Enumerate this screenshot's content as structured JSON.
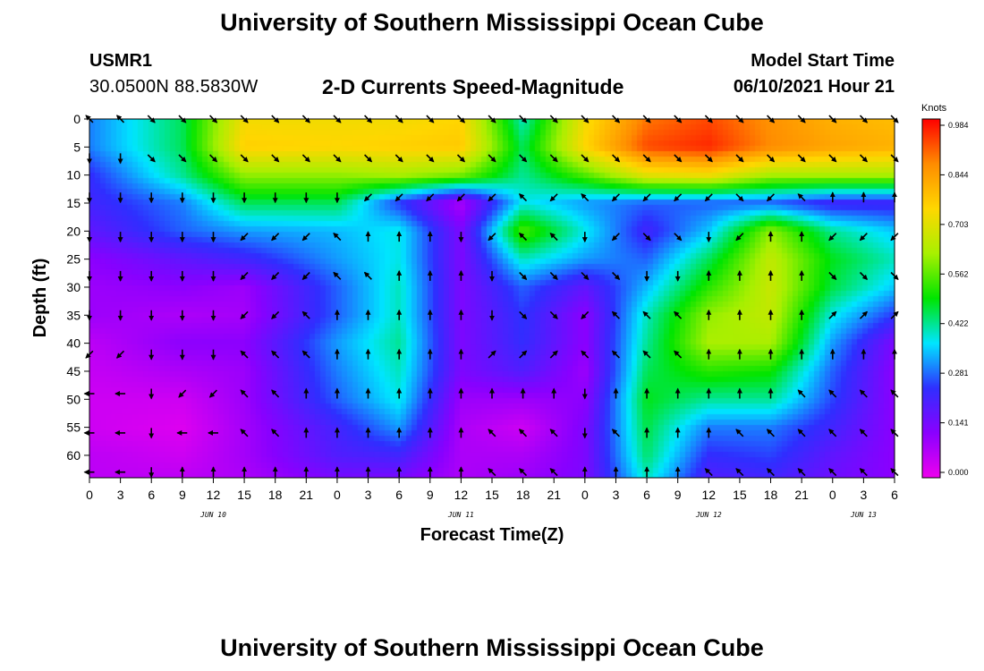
{
  "header": {
    "title": "University of Southern Mississippi Ocean Cube",
    "station": "USMR1",
    "coords": "30.0500N  88.5830W",
    "subtitle": "2-D Currents Speed-Magnitude",
    "model_label": "Model Start Time",
    "model_time": "06/10/2021 Hour 21"
  },
  "footer": {
    "title": "University of Southern Mississippi Ocean Cube"
  },
  "colors": {
    "scale": [
      "#ee00ee",
      "#8a00ff",
      "#2f2fff",
      "#00e5ff",
      "#00e500",
      "#a8f000",
      "#ffd700",
      "#ff8c00",
      "#ff0000"
    ]
  },
  "chart_data": {
    "type": "heatmap",
    "xlabel": "Forecast Time(Z)",
    "ylabel": "Depth (ft)",
    "colorbar_title": "Knots",
    "x_tick_labels": [
      "0",
      "3",
      "6",
      "9",
      "12",
      "15",
      "18",
      "21",
      "0",
      "3",
      "6",
      "9",
      "12",
      "15",
      "18",
      "21",
      "0",
      "3",
      "6",
      "9",
      "12",
      "15",
      "18",
      "21",
      "0",
      "3",
      "6"
    ],
    "date_labels": [
      {
        "label": "JUN 10",
        "x_index": 4
      },
      {
        "label": "JUN 11",
        "x_index": 12
      },
      {
        "label": "JUN 12",
        "x_index": 20
      },
      {
        "label": "JUN 13",
        "x_index": 25
      }
    ],
    "y_ticks": [
      0,
      5,
      10,
      15,
      20,
      25,
      30,
      35,
      40,
      45,
      50,
      55,
      60
    ],
    "ylim": [
      0,
      64
    ],
    "xlim": [
      0,
      78
    ],
    "colorbar_ticks": [
      "0.984",
      "0.844",
      "0.703",
      "0.562",
      "0.422",
      "0.281",
      "0.141",
      "0.000"
    ],
    "colorbar_range": [
      0.0,
      0.984
    ],
    "x_hours": [
      0,
      9,
      15,
      24,
      30,
      36,
      42,
      48,
      54,
      60,
      66,
      72,
      78
    ],
    "depths_ft": [
      0,
      5,
      10,
      15,
      20,
      25,
      30,
      35,
      40,
      45,
      50,
      55,
      60,
      64
    ],
    "speed_knots": [
      [
        0.3,
        0.45,
        0.72,
        0.72,
        0.72,
        0.74,
        0.4,
        0.72,
        0.88,
        0.92,
        0.85,
        0.8,
        0.78
      ],
      [
        0.3,
        0.45,
        0.75,
        0.74,
        0.75,
        0.76,
        0.45,
        0.74,
        0.92,
        0.95,
        0.86,
        0.82,
        0.8
      ],
      [
        0.24,
        0.42,
        0.6,
        0.6,
        0.62,
        0.58,
        0.42,
        0.55,
        0.7,
        0.72,
        0.62,
        0.62,
        0.62
      ],
      [
        0.22,
        0.3,
        0.45,
        0.45,
        0.25,
        0.08,
        0.38,
        0.32,
        0.28,
        0.28,
        0.28,
        0.22,
        0.22
      ],
      [
        0.18,
        0.28,
        0.32,
        0.34,
        0.38,
        0.14,
        0.55,
        0.38,
        0.22,
        0.35,
        0.6,
        0.42,
        0.35
      ],
      [
        0.12,
        0.18,
        0.22,
        0.32,
        0.38,
        0.14,
        0.4,
        0.32,
        0.28,
        0.45,
        0.65,
        0.48,
        0.4
      ],
      [
        0.1,
        0.12,
        0.1,
        0.28,
        0.4,
        0.14,
        0.28,
        0.18,
        0.34,
        0.52,
        0.66,
        0.46,
        0.35
      ],
      [
        0.1,
        0.08,
        0.09,
        0.28,
        0.4,
        0.14,
        0.25,
        0.12,
        0.4,
        0.6,
        0.65,
        0.38,
        0.25
      ],
      [
        0.06,
        0.12,
        0.12,
        0.32,
        0.42,
        0.14,
        0.24,
        0.12,
        0.42,
        0.62,
        0.62,
        0.32,
        0.14
      ],
      [
        0.05,
        0.08,
        0.1,
        0.3,
        0.4,
        0.14,
        0.2,
        0.1,
        0.45,
        0.52,
        0.5,
        0.28,
        0.12
      ],
      [
        0.04,
        0.04,
        0.1,
        0.28,
        0.38,
        0.1,
        0.1,
        0.12,
        0.48,
        0.42,
        0.42,
        0.26,
        0.12
      ],
      [
        0.04,
        0.02,
        0.09,
        0.22,
        0.32,
        0.08,
        0.04,
        0.14,
        0.46,
        0.3,
        0.3,
        0.22,
        0.12
      ],
      [
        0.06,
        0.04,
        0.09,
        0.2,
        0.22,
        0.08,
        0.08,
        0.14,
        0.44,
        0.24,
        0.26,
        0.18,
        0.12
      ],
      [
        0.06,
        0.06,
        0.08,
        0.15,
        0.15,
        0.08,
        0.1,
        0.14,
        0.4,
        0.2,
        0.22,
        0.16,
        0.12
      ]
    ],
    "arrow_hours": [
      0,
      3,
      6,
      9,
      12,
      15,
      18,
      21,
      24,
      27,
      30,
      33,
      36,
      39,
      42,
      45,
      48,
      51,
      54,
      57,
      60,
      63,
      66,
      69,
      72,
      75,
      78
    ],
    "arrow_rows": [
      {
        "depth": 0,
        "dirs": [
          315,
          315,
          135,
          135,
          135,
          135,
          135,
          135,
          135,
          135,
          135,
          135,
          135,
          135,
          135,
          135,
          135,
          135,
          135,
          135,
          135,
          135,
          135,
          135,
          135,
          135,
          135
        ]
      },
      {
        "depth": 7,
        "dirs": [
          180,
          180,
          135,
          135,
          135,
          135,
          135,
          135,
          135,
          135,
          135,
          135,
          135,
          135,
          135,
          135,
          135,
          135,
          135,
          135,
          135,
          135,
          135,
          135,
          135,
          135,
          135
        ]
      },
      {
        "depth": 14,
        "dirs": [
          180,
          180,
          180,
          180,
          180,
          180,
          180,
          180,
          180,
          225,
          225,
          225,
          225,
          225,
          315,
          225,
          315,
          225,
          225,
          225,
          225,
          135,
          225,
          315,
          0,
          0,
          0
        ]
      },
      {
        "depth": 21,
        "dirs": [
          180,
          180,
          180,
          180,
          180,
          225,
          225,
          225,
          315,
          0,
          0,
          0,
          180,
          225,
          315,
          315,
          180,
          225,
          135,
          135,
          180,
          225,
          0,
          0,
          225,
          225,
          225
        ]
      },
      {
        "depth": 28,
        "dirs": [
          180,
          180,
          180,
          180,
          180,
          225,
          225,
          225,
          315,
          315,
          0,
          0,
          0,
          180,
          135,
          135,
          135,
          135,
          180,
          180,
          0,
          0,
          0,
          0,
          135,
          135,
          135
        ]
      },
      {
        "depth": 35,
        "dirs": [
          180,
          180,
          180,
          180,
          180,
          225,
          225,
          315,
          0,
          0,
          0,
          0,
          0,
          180,
          135,
          135,
          225,
          315,
          315,
          315,
          0,
          0,
          0,
          0,
          45,
          45,
          45
        ]
      },
      {
        "depth": 42,
        "dirs": [
          225,
          225,
          180,
          180,
          180,
          315,
          315,
          315,
          0,
          0,
          0,
          0,
          0,
          45,
          45,
          45,
          315,
          315,
          315,
          315,
          0,
          0,
          0,
          0,
          0,
          0,
          0
        ]
      },
      {
        "depth": 49,
        "dirs": [
          270,
          270,
          180,
          225,
          225,
          315,
          315,
          0,
          0,
          0,
          0,
          0,
          0,
          0,
          0,
          0,
          180,
          0,
          0,
          0,
          0,
          0,
          0,
          315,
          315,
          315,
          315
        ]
      },
      {
        "depth": 56,
        "dirs": [
          270,
          270,
          180,
          270,
          270,
          315,
          315,
          0,
          0,
          0,
          0,
          0,
          0,
          315,
          315,
          315,
          180,
          315,
          0,
          0,
          0,
          315,
          315,
          315,
          315,
          315,
          315
        ]
      },
      {
        "depth": 63,
        "dirs": [
          270,
          270,
          180,
          0,
          0,
          0,
          0,
          0,
          0,
          0,
          0,
          0,
          0,
          315,
          315,
          315,
          0,
          0,
          0,
          0,
          315,
          315,
          315,
          315,
          315,
          315,
          315
        ]
      }
    ]
  }
}
